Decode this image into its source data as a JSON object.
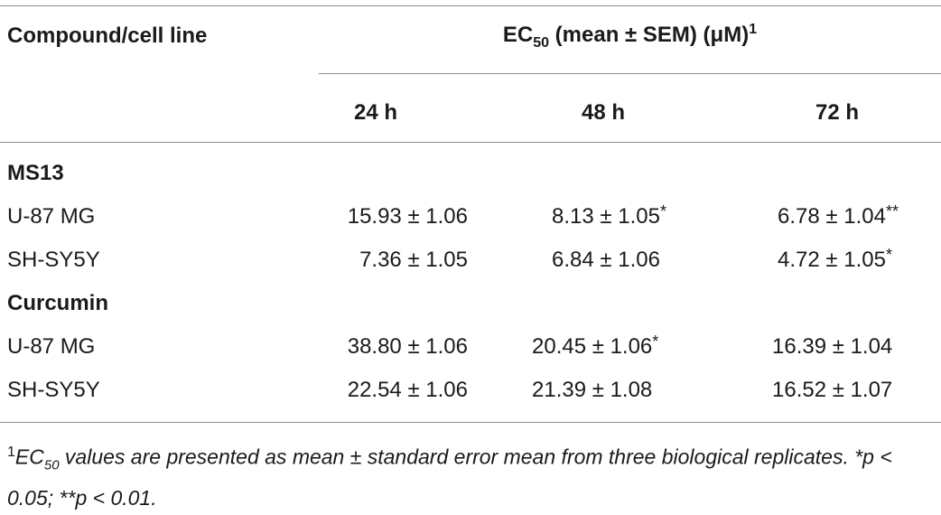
{
  "table": {
    "header_left": "Compound/cell line",
    "header_span_pre": "EC",
    "header_span_sub": "50",
    "header_span_post": " (mean ± SEM) (μM)",
    "header_span_sup": "1",
    "columns": [
      "24 h",
      "48 h",
      "72 h"
    ],
    "groups": [
      {
        "name": "MS13",
        "rows": [
          {
            "label": "U-87 MG",
            "v24": "15.93 ± 1.06",
            "s24": "",
            "v48": "8.13 ± 1.05",
            "s48": "*",
            "v72": "6.78 ± 1.04",
            "s72": "**"
          },
          {
            "label": "SH-SY5Y",
            "v24": "7.36 ± 1.05",
            "s24": "",
            "v48": "6.84 ± 1.06",
            "s48": "",
            "v72": "4.72 ± 1.05",
            "s72": "*"
          }
        ]
      },
      {
        "name": "Curcumin",
        "rows": [
          {
            "label": "U-87 MG",
            "v24": "38.80 ± 1.06",
            "s24": "",
            "v48": "20.45 ± 1.06",
            "s48": "*",
            "v72": "16.39 ± 1.04",
            "s72": ""
          },
          {
            "label": "SH-SY5Y",
            "v24": "22.54 ± 1.06",
            "s24": "",
            "v48": "21.39 ± 1.08",
            "s48": "",
            "v72": "16.52 ± 1.07",
            "s72": ""
          }
        ]
      }
    ]
  },
  "footnote": {
    "mark": "1",
    "pre": "EC",
    "sub": "50",
    "text": " values are presented as mean ± standard error mean from three biological replicates. *p < 0.05; **p < 0.01."
  }
}
